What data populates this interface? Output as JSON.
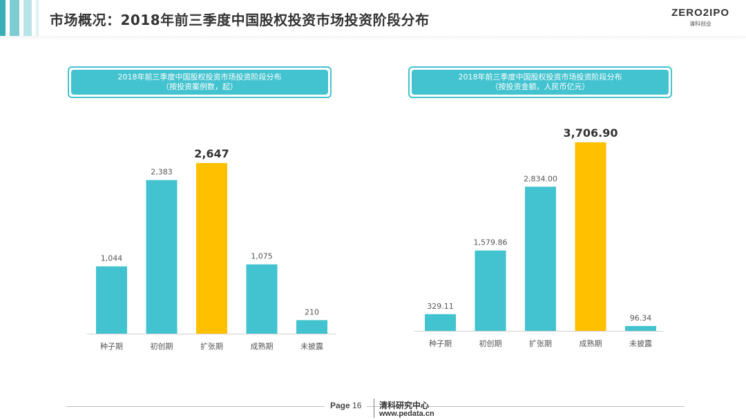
{
  "header": {
    "title": "市场概况：2018年前三季度中国股权投资市场投资阶段分布",
    "logo_text": "ZERO2IPO",
    "logo_subtext": "清科创业"
  },
  "colors": {
    "bar": "#43c3cf",
    "highlight": "#ffc000",
    "accent": "#3aaeb7"
  },
  "chart_data": [
    {
      "type": "bar",
      "title": "2018年前三季度中国股权投资市场投资阶段分布",
      "subtitle": "（按投资案例数，起）",
      "categories": [
        "种子期",
        "初创期",
        "扩张期",
        "成熟期",
        "未披露"
      ],
      "values": [
        1044,
        2383,
        2647,
        1075,
        210
      ],
      "labels": [
        "1,044",
        "2,383",
        "2,647",
        "1,075",
        "210"
      ],
      "highlight_index": 2,
      "xlabel": "",
      "ylabel": ""
    },
    {
      "type": "bar",
      "title": "2018年前三季度中国股权投资市场投资阶段分布",
      "subtitle": "（按投资金额，人民币亿元）",
      "categories": [
        "种子期",
        "初创期",
        "扩张期",
        "成熟期",
        "未披露"
      ],
      "values": [
        329.11,
        1579.86,
        2834.0,
        3706.9,
        96.34
      ],
      "labels": [
        "329.11",
        "1,579.86",
        "2,834.00",
        "3,706.90",
        "96.34"
      ],
      "highlight_index": 3,
      "xlabel": "",
      "ylabel": ""
    }
  ],
  "footer": {
    "page_label": "Page",
    "page_number": "16",
    "org": "清科研究中心",
    "url": "www.pedata.cn"
  }
}
